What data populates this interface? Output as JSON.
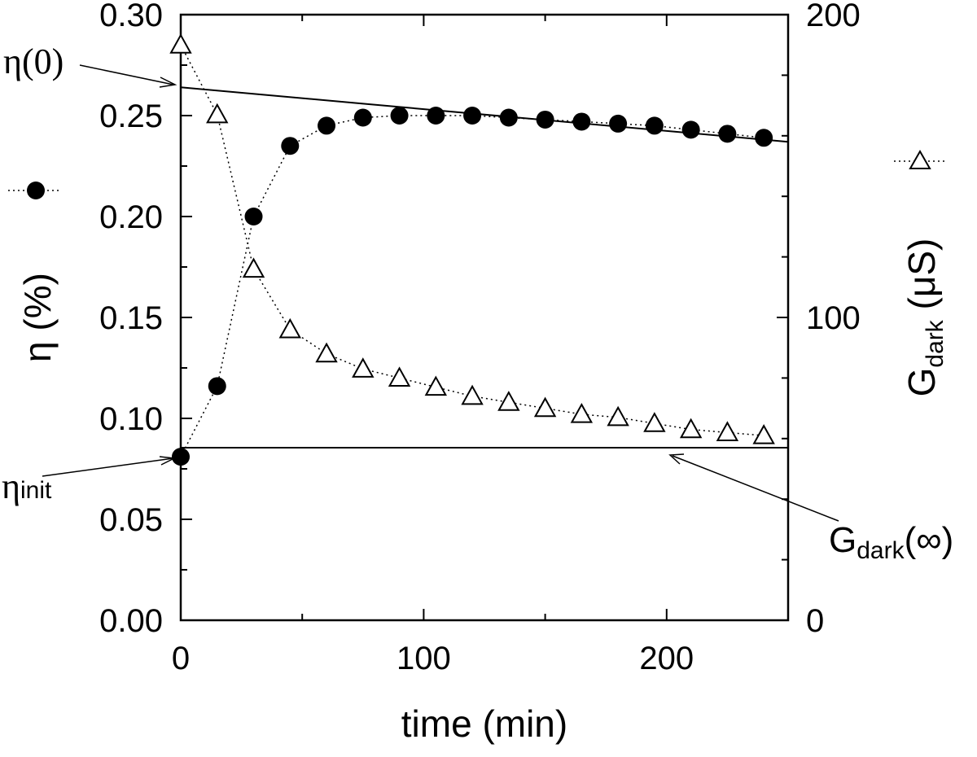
{
  "chart_data": {
    "type": "scatter",
    "xlabel": "time (min)",
    "ylabel_left": "η (%)",
    "ylabel_right": "G",
    "ylabel_right_sub": "dark",
    "ylabel_right_unit": " (μS)",
    "xlim": [
      0,
      250
    ],
    "ylim_left": [
      0,
      0.3
    ],
    "ylim_right": [
      0,
      200
    ],
    "x_ticks": [
      0,
      100,
      200
    ],
    "x_tick_labels": [
      "0",
      "100",
      "200"
    ],
    "y_left_ticks": [
      0,
      0.05,
      0.1,
      0.15,
      0.2,
      0.25,
      0.3
    ],
    "y_left_tick_labels": [
      "0.00",
      "0.05",
      "0.10",
      "0.15",
      "0.20",
      "0.25",
      "0.30"
    ],
    "y_right_ticks": [
      0,
      100,
      200
    ],
    "y_right_tick_labels": [
      "0",
      "100",
      "200"
    ],
    "series": [
      {
        "name": "η",
        "axis": "left",
        "marker": "filled-circle",
        "x": [
          0,
          15,
          30,
          45,
          60,
          75,
          90,
          105,
          120,
          135,
          150,
          165,
          180,
          195,
          210,
          225,
          240
        ],
        "values": [
          0.081,
          0.116,
          0.2,
          0.235,
          0.245,
          0.249,
          0.25,
          0.25,
          0.25,
          0.249,
          0.248,
          0.247,
          0.246,
          0.245,
          0.243,
          0.241,
          0.239
        ]
      },
      {
        "name": "Gdark",
        "axis": "right",
        "marker": "open-triangle",
        "x": [
          0,
          15,
          30,
          45,
          60,
          75,
          90,
          105,
          120,
          135,
          150,
          165,
          180,
          195,
          210,
          225,
          240
        ],
        "values": [
          190,
          167,
          116,
          96,
          88,
          83,
          80,
          77,
          74,
          72,
          70,
          68,
          67,
          65,
          63,
          62,
          61
        ]
      }
    ],
    "fit_lines": [
      {
        "name": "eta-linear-fit",
        "axis": "left",
        "x": [
          0,
          250
        ],
        "values": [
          0.264,
          0.237
        ]
      },
      {
        "name": "gdark-infinity-level",
        "axis": "right",
        "x": [
          0,
          250
        ],
        "values": [
          57,
          57
        ]
      }
    ],
    "annotations": {
      "eta0": {
        "text": "η(0)"
      },
      "eta_init": {
        "text": "η",
        "sub": "init"
      },
      "gdark_inf": {
        "text": "G",
        "sub": "dark",
        "suffix": "(∞)"
      }
    },
    "legend": {
      "eta_marker": "filled-circle",
      "gdark_marker": "open-triangle"
    }
  }
}
